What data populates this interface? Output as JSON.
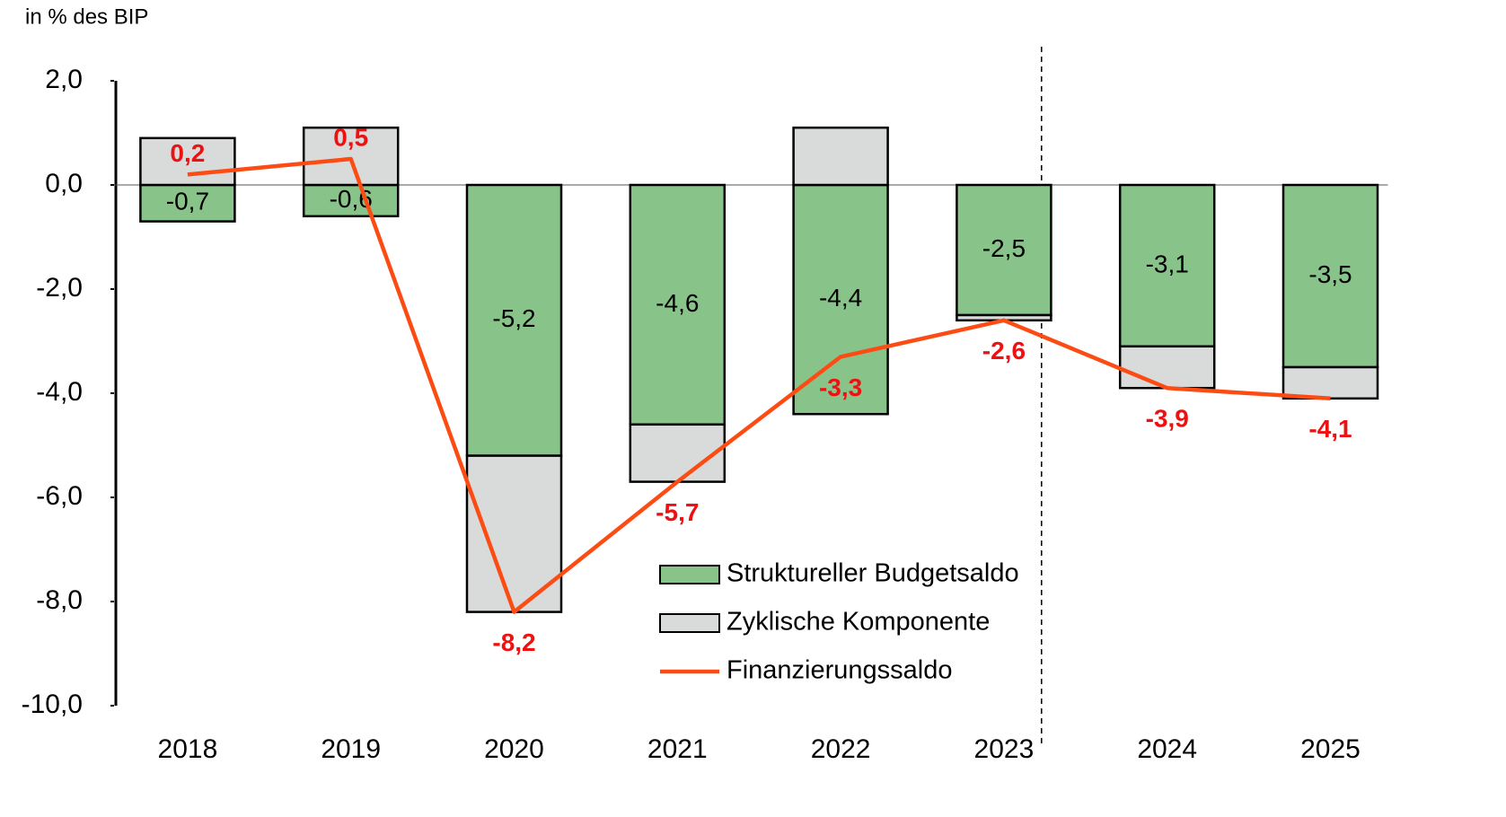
{
  "chart_data": {
    "type": "stacked_bar_line",
    "y_axis_label": "in % des BIP",
    "categories": [
      "2018",
      "2019",
      "2020",
      "2021",
      "2022",
      "2023",
      "2024",
      "2025"
    ],
    "series": [
      {
        "name": "Struktureller Budgetsaldo",
        "color": "#88c48a",
        "kind": "bar",
        "values": [
          -0.7,
          -0.6,
          -5.2,
          -4.6,
          -4.4,
          -2.5,
          -3.1,
          -3.5
        ],
        "value_labels": [
          "-0,7",
          "-0,6",
          "-5,2",
          "-4,6",
          "-4,4",
          "-2,5",
          "-3,1",
          "-3,5"
        ]
      },
      {
        "name": "Zyklische Komponente",
        "color": "#d9dbdb",
        "kind": "bar",
        "values": [
          0.9,
          1.1,
          -3.0,
          -1.1,
          1.1,
          -0.1,
          -0.8,
          -0.6
        ]
      },
      {
        "name": "Finanzierungssaldo",
        "color": "#fc4c14",
        "kind": "line",
        "values": [
          0.2,
          0.5,
          -8.2,
          -5.7,
          -3.3,
          -2.6,
          -3.9,
          -4.1
        ],
        "value_labels": [
          "0,2",
          "0,5",
          "-8,2",
          "-5,7",
          "-3,3",
          "-2,6",
          "-3,9",
          "-4,1"
        ]
      }
    ],
    "ylim": [
      -10,
      2
    ],
    "yticks": [
      {
        "value": -10,
        "label": "-10,0"
      },
      {
        "value": -8,
        "label": "-8,0"
      },
      {
        "value": -6,
        "label": "-6,0"
      },
      {
        "value": -4,
        "label": "-4,0"
      },
      {
        "value": -2,
        "label": "-2,0"
      },
      {
        "value": 0,
        "label": "0,0"
      },
      {
        "value": 2,
        "label": "2,0"
      }
    ],
    "line_label_color": "#ee1111"
  }
}
